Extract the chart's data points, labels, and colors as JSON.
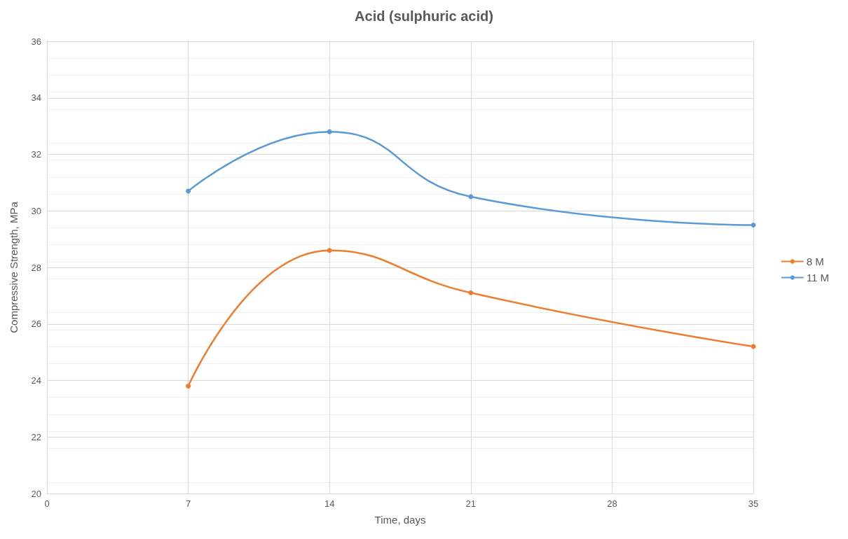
{
  "chart_data": {
    "type": "line",
    "title": "Acid (sulphuric acid)",
    "xlabel": "Time, days",
    "ylabel": "Compressive Strength, MPa",
    "x": [
      7,
      14,
      21,
      35
    ],
    "series": [
      {
        "name": "8 M",
        "color": "#ed7d31",
        "values": [
          23.8,
          28.6,
          27.1,
          25.2
        ]
      },
      {
        "name": "11 M",
        "color": "#5b9bd5",
        "values": [
          30.7,
          32.8,
          30.5,
          29.5
        ]
      }
    ],
    "xlim": [
      0,
      35
    ],
    "xticks": [
      0,
      7,
      14,
      21,
      28,
      35
    ],
    "ylim": [
      20,
      36
    ],
    "yticks": [
      20,
      22,
      24,
      26,
      28,
      30,
      32,
      34,
      36
    ],
    "grid": true,
    "legend": "right",
    "marker": "circle",
    "line_style": "solid"
  }
}
